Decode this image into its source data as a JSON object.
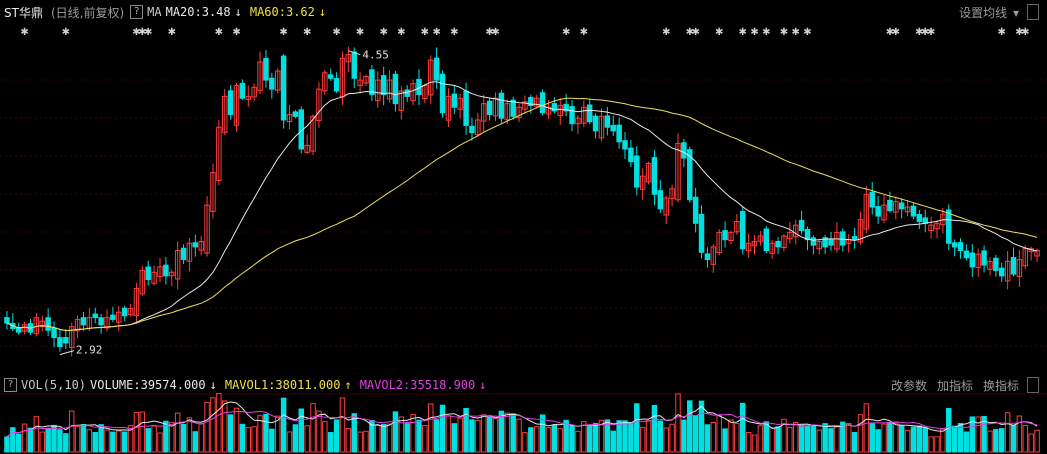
{
  "header": {
    "stock_name": "ST华鼎",
    "period": "(日线,前复权)",
    "help": "?",
    "ma_label": "MA",
    "ma20": "MA20:3.48",
    "ma20_arrow": "↓",
    "ma60": "MA60:3.62",
    "ma60_arrow": "↓",
    "settings": "设置均线",
    "settings_arrow": "▾"
  },
  "volume_bar": {
    "help": "?",
    "label": "VOL(5,10)",
    "volume": "VOLUME:39574.000",
    "volume_arrow": "↓",
    "mavol1": "MAVOL1:38011.000",
    "mavol1_arrow": "↑",
    "mavol2": "MAVOL2:35518.900",
    "mavol2_arrow": "↓",
    "modify": "改参数",
    "add": "加指标",
    "switch": "换指标"
  },
  "colors": {
    "up": "#ff3c3c",
    "down": "#00e0e0",
    "ma20": "#e8e8e8",
    "ma60": "#e8e060",
    "mavol1": "#e8e8e8",
    "mavol2": "#e040e0",
    "grid": "#3a0000",
    "marker": "#d0d0d0"
  },
  "chart_data": {
    "type": "candlestick",
    "y_range": [
      2.8,
      4.62
    ],
    "max_label": "4.55",
    "min_label": "2.92",
    "closes": [
      3.07,
      3.04,
      3.02,
      3.06,
      3.02,
      3.1,
      3.08,
      3.03,
      2.99,
      2.94,
      2.96,
      3.05,
      3.09,
      3.06,
      3.1,
      3.1,
      3.06,
      3.1,
      3.09,
      3.13,
      3.11,
      3.15,
      3.26,
      3.36,
      3.31,
      3.35,
      3.38,
      3.33,
      3.35,
      3.47,
      3.42,
      3.51,
      3.49,
      3.52,
      3.72,
      3.9,
      4.15,
      4.32,
      4.22,
      4.38,
      4.31,
      4.32,
      4.37,
      4.51,
      4.41,
      4.36,
      4.46,
      4.19,
      4.22,
      4.21,
      4.03,
      4.05,
      4.21,
      4.36,
      4.45,
      4.42,
      4.35,
      4.53,
      4.55,
      4.42,
      4.41,
      4.43,
      4.33,
      4.41,
      4.33,
      4.41,
      4.28,
      4.35,
      4.32,
      4.39,
      4.33,
      4.38,
      4.52,
      4.41,
      4.23,
      4.32,
      4.26,
      4.31,
      4.16,
      4.12,
      4.19,
      4.28,
      4.22,
      4.31,
      4.2,
      4.28,
      4.21,
      4.26,
      4.29,
      4.27,
      4.31,
      4.23,
      4.26,
      4.24,
      4.27,
      4.24,
      4.17,
      4.2,
      4.26,
      4.18,
      4.13,
      4.21,
      4.15,
      4.13,
      4.07,
      4.03,
      3.96,
      3.82,
      3.88,
      3.95,
      3.78,
      3.7,
      3.76,
      3.81,
      4.06,
      3.98,
      3.75,
      3.62,
      3.46,
      3.42,
      3.49,
      3.57,
      3.53,
      3.57,
      3.63,
      3.48,
      3.51,
      3.52,
      3.55,
      3.47,
      3.51,
      3.49,
      3.55,
      3.57,
      3.61,
      3.58,
      3.53,
      3.5,
      3.52,
      3.49,
      3.5,
      3.57,
      3.5,
      3.53,
      3.53,
      3.64,
      3.78,
      3.71,
      3.66,
      3.72,
      3.69,
      3.74,
      3.7,
      3.71,
      3.66,
      3.63,
      3.62,
      3.61,
      3.62,
      3.67,
      3.51,
      3.49,
      3.47,
      3.43,
      3.38,
      3.45,
      3.39,
      3.41,
      3.36,
      3.33,
      3.41,
      3.34,
      3.42,
      3.48,
      3.48,
      3.47
    ]
  }
}
